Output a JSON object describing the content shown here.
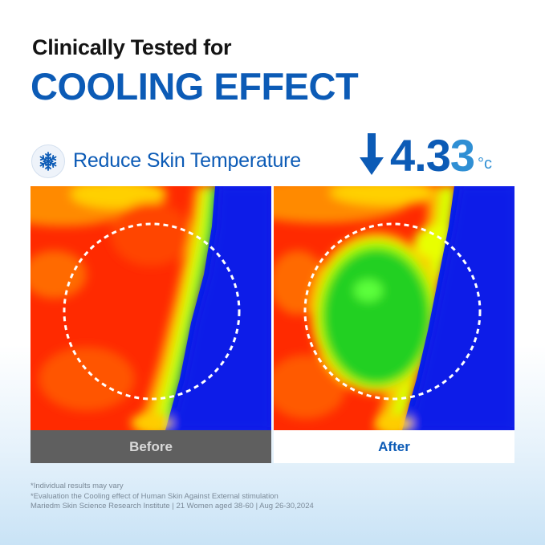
{
  "headline": "Clinically Tested for",
  "title": "COOLING EFFECT",
  "subtitle": "Reduce Skin Temperature",
  "stat": {
    "value_main": "4.3",
    "value_tail": "3",
    "unit": "°c",
    "direction_icon": "arrow-down-icon"
  },
  "badge_icon": "snowflake-icon",
  "panels": [
    {
      "label": "Before",
      "thermal": "mostly-red"
    },
    {
      "label": "After",
      "thermal": "green-center"
    }
  ],
  "footnotes": [
    "*Individual results may vary",
    "*Evaluation the Cooling effect of Human Skin Against External stimulation",
    "Mariedm Skin Science Research Institute | 21 Women aged 38-60 | Aug 26-30,2024"
  ],
  "colors": {
    "brand_blue": "#0c5bb6",
    "accent_blue": "#2f8fd4",
    "before_caption_bg": "#5f5f5f",
    "after_caption_bg": "#ffffff"
  }
}
